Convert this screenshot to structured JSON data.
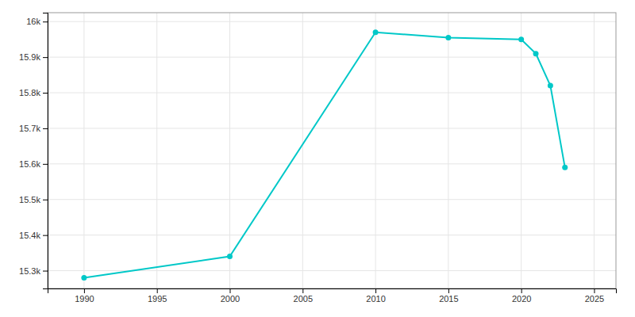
{
  "chart_data": {
    "type": "line",
    "x": [
      1990,
      2000,
      2010,
      2015,
      2020,
      2021,
      2022,
      2023
    ],
    "values": [
      15280,
      15340,
      15970,
      15955,
      15950,
      15910,
      15820,
      15590
    ],
    "color": "#00C8C8",
    "marker": "circle",
    "xlim": [
      1987.5,
      2026.5
    ],
    "ylim": [
      15250,
      16025
    ],
    "xticks": [
      1990,
      1995,
      2000,
      2005,
      2010,
      2015,
      2020,
      2025
    ],
    "yticks": [
      {
        "value": 15300,
        "label": "15.3k"
      },
      {
        "value": 15400,
        "label": "15.4k"
      },
      {
        "value": 15500,
        "label": "15.5k"
      },
      {
        "value": 15600,
        "label": "15.6k"
      },
      {
        "value": 15700,
        "label": "15.7k"
      },
      {
        "value": 15800,
        "label": "15.8k"
      },
      {
        "value": 15900,
        "label": "15.9k"
      },
      {
        "value": 16000,
        "label": "16k"
      }
    ],
    "grid": true
  }
}
